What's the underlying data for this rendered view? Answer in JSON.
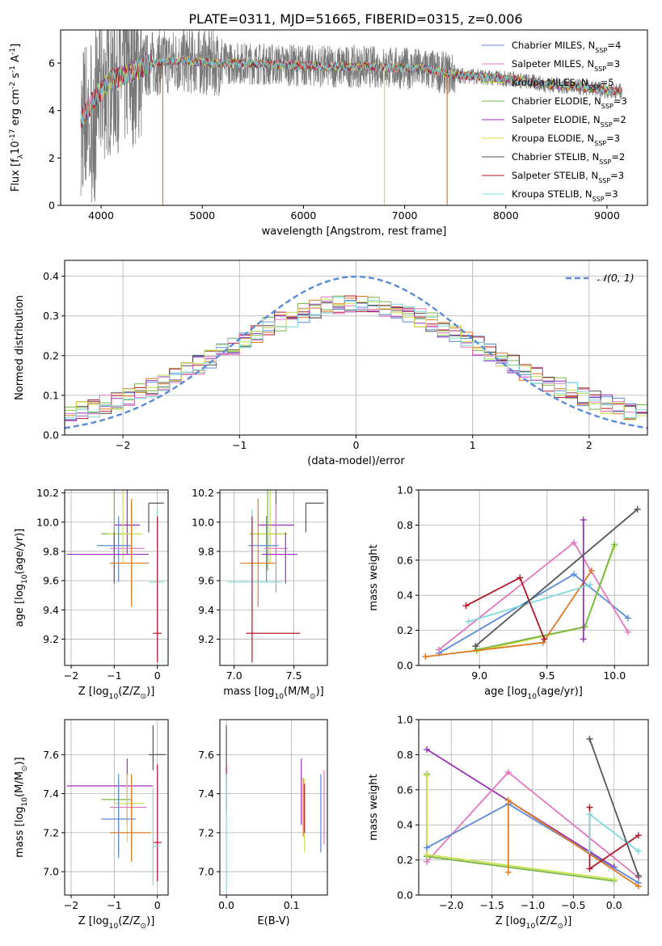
{
  "figure": {
    "title": "PLATE=0311, MJD=51665, FIBERID=0315, z=0.006"
  },
  "colors": [
    "#5b8bd8",
    "#e07b22",
    "#7ab648",
    "#b5172a",
    "#9b30b8",
    "#8c564b",
    "#e377c2",
    "#555555",
    "#c8e04a",
    "#80d8dc"
  ],
  "chart_data": [
    {
      "id": "spectrum",
      "type": "line",
      "xlabel": "wavelength [Angstrom, rest frame]",
      "ylabel": "Flux [f$_\\lambda$10$^{-17}$ erg cm$^{-2}$ s$^{-1}$ A$^{-1}$]",
      "xlim": [
        3600,
        9400
      ],
      "ylim": [
        0,
        7.4
      ],
      "xticks": [
        4000,
        5000,
        6000,
        7000,
        8000,
        9000
      ],
      "yticks": [
        0,
        2,
        4,
        6
      ],
      "legend_position": "top-right",
      "continuum_x": [
        3800,
        3950,
        4100,
        4300,
        4500,
        4800,
        5100,
        5400,
        5700,
        6000,
        6300,
        6600,
        6900,
        7200,
        7500,
        7800,
        8100,
        8400,
        8700,
        9000,
        9150
      ],
      "continuum_y": [
        3.6,
        4.6,
        5.3,
        5.6,
        6.0,
        6.1,
        6.0,
        6.0,
        5.95,
        5.9,
        5.85,
        5.85,
        5.8,
        5.75,
        5.5,
        5.4,
        5.3,
        5.1,
        5.0,
        4.85,
        4.8
      ],
      "models": [
        {
          "name": "Chabrier MILES, N$_{SSP}$=4",
          "color": "#5b8bd8"
        },
        {
          "name": "Salpeter MILES, N$_{SSP}$=3",
          "color": "#e377c2"
        },
        {
          "name": "Kroupa MILES, N$_{SSP}$=5",
          "color": "#c8e04a"
        },
        {
          "name": "Chabrier ELODIE, N$_{SSP}$=3",
          "color": "#7ab648"
        },
        {
          "name": "Salpeter ELODIE, N$_{SSP}$=2",
          "color": "#9b30b8"
        },
        {
          "name": "Kroupa ELODIE, N$_{SSP}$=3",
          "color": "#e0d84a"
        },
        {
          "name": "Chabrier STELIB, N$_{SSP}$=2",
          "color": "#555555"
        },
        {
          "name": "Salpeter STELIB, N$_{SSP}$=3",
          "color": "#b5172a"
        },
        {
          "name": "Kroupa STELIB, N$_{SSP}$=3",
          "color": "#80d8dc"
        }
      ],
      "legend_labels": [
        {
          "pre": "Chabrier MILES, N",
          "sub": "SSP",
          "post": "=4"
        },
        {
          "pre": "Salpeter MILES, N",
          "sub": "SSP",
          "post": "=3"
        },
        {
          "pre": "Kroupa MILES, N",
          "sub": "SSP",
          "post": "=5"
        },
        {
          "pre": "Chabrier ELODIE, N",
          "sub": "SSP",
          "post": "=3"
        },
        {
          "pre": "Salpeter ELODIE, N",
          "sub": "SSP",
          "post": "=2"
        },
        {
          "pre": "Kroupa ELODIE, N",
          "sub": "SSP",
          "post": "=3"
        },
        {
          "pre": "Chabrier STELIB, N",
          "sub": "SSP",
          "post": "=2"
        },
        {
          "pre": "Salpeter STELIB, N",
          "sub": "SSP",
          "post": "=3"
        },
        {
          "pre": "Kroupa STELIB, N",
          "sub": "SSP",
          "post": "=3"
        }
      ],
      "dropouts": [
        {
          "x": 4610,
          "color": "#e07b22"
        },
        {
          "x": 6800,
          "color": "#c8e04a"
        },
        {
          "x": 7420,
          "color": "#e07b22"
        }
      ]
    },
    {
      "id": "residuals",
      "type": "histogram",
      "xlabel": "(data-model)/error",
      "ylabel": "Normed distribution",
      "xlim": [
        -2.5,
        2.5
      ],
      "ylim": [
        0,
        0.44
      ],
      "xticks": [
        -2,
        -1,
        0,
        1,
        2
      ],
      "yticks": [
        0.0,
        0.1,
        0.2,
        0.3,
        0.4
      ],
      "grid": true,
      "legend": "𝒩(0, 1)",
      "legend_position": "top-right",
      "gaussian": {
        "mu": 0,
        "sigma": 1,
        "peak": 0.399,
        "color": "#5b8bd8",
        "style": "dashed"
      },
      "bin_width": 0.1,
      "bin_start": -2.5
    },
    {
      "id": "age_vs_Z",
      "type": "errorbar",
      "xlabel": "Z [log$_{10}$(Z/Z$_\\odot$)]",
      "ylabel": "age  [log$_{10}$(age/yr)]",
      "xlim": [
        -2.15,
        0.25
      ],
      "ylim": [
        9.02,
        10.22
      ],
      "xticks": [
        -2,
        -1,
        0
      ],
      "yticks": [
        9.2,
        9.4,
        9.6,
        9.8,
        10.0,
        10.2
      ],
      "grid": true,
      "points": [
        {
          "x": -0.2,
          "y": 10.13,
          "xerr": [
            0.0,
            0.35
          ],
          "yerr": [
            0.2,
            0.0
          ],
          "color": "#555555"
        },
        {
          "x": -0.7,
          "y": 9.98,
          "xerr": [
            0.3,
            0.3
          ],
          "yerr": [
            0.2,
            0.4
          ],
          "color": "#9b30b8"
        },
        {
          "x": -1.0,
          "y": 9.92,
          "xerr": [
            0.3,
            0.4
          ],
          "yerr": [
            0.25,
            0.3
          ],
          "color": "#7ab648"
        },
        {
          "x": -0.8,
          "y": 9.92,
          "xerr": [
            0.35,
            0.45
          ],
          "yerr": [
            0.2,
            0.3
          ],
          "color": "#c8e04a"
        },
        {
          "x": -0.9,
          "y": 9.84,
          "xerr": [
            0.5,
            0.3
          ],
          "yerr": [
            0.25,
            0.2
          ],
          "color": "#5b8bd8"
        },
        {
          "x": -0.6,
          "y": 9.82,
          "xerr": [
            0.5,
            0.3
          ],
          "yerr": [
            0.3,
            0.3
          ],
          "color": "#e377c2"
        },
        {
          "x": -1.0,
          "y": 9.78,
          "xerr": [
            1.1,
            0.8
          ],
          "yerr": [
            0.2,
            0.15
          ],
          "color": "#9b30b8"
        },
        {
          "x": -0.6,
          "y": 9.72,
          "xerr": [
            0.5,
            0.4
          ],
          "yerr": [
            0.3,
            0.44
          ],
          "color": "#e07b22"
        },
        {
          "x": 0.0,
          "y": 9.59,
          "xerr": [
            0.2,
            0.15
          ],
          "yerr": [
            0.5,
            0.5
          ],
          "color": "#80d8dc"
        },
        {
          "x": 0.0,
          "y": 9.24,
          "xerr": [
            0.1,
            0.1
          ],
          "yerr": [
            0.2,
            0.8
          ],
          "color": "#b5172a"
        }
      ]
    },
    {
      "id": "age_vs_mass",
      "type": "errorbar",
      "xlabel": "mass [log$_{10}$(M/M$_\\odot$)]",
      "ylabel": "",
      "xlim": [
        6.88,
        7.78
      ],
      "ylim": [
        9.02,
        10.22
      ],
      "xticks": [
        7.0,
        7.5
      ],
      "yticks": [
        9.2,
        9.4,
        9.6,
        9.8,
        10.0,
        10.2
      ],
      "grid": true,
      "points": [
        {
          "x": 7.6,
          "y": 10.13,
          "xerr": [
            0.0,
            0.15
          ],
          "yerr": [
            0.2,
            0.0
          ],
          "color": "#555555"
        },
        {
          "x": 7.35,
          "y": 9.98,
          "xerr": [
            0.15,
            0.15
          ],
          "yerr": [
            0.2,
            0.4
          ],
          "color": "#9b30b8"
        },
        {
          "x": 7.28,
          "y": 9.92,
          "xerr": [
            0.15,
            0.15
          ],
          "yerr": [
            0.25,
            0.3
          ],
          "color": "#7ab648"
        },
        {
          "x": 7.3,
          "y": 9.92,
          "xerr": [
            0.15,
            0.15
          ],
          "yerr": [
            0.2,
            0.3
          ],
          "color": "#c8e04a"
        },
        {
          "x": 7.27,
          "y": 9.84,
          "xerr": [
            0.15,
            0.1
          ],
          "yerr": [
            0.25,
            0.2
          ],
          "color": "#5b8bd8"
        },
        {
          "x": 7.35,
          "y": 9.82,
          "xerr": [
            0.1,
            0.1
          ],
          "yerr": [
            0.3,
            0.3
          ],
          "color": "#e377c2"
        },
        {
          "x": 7.43,
          "y": 9.78,
          "xerr": [
            0.2,
            0.1
          ],
          "yerr": [
            0.2,
            0.15
          ],
          "color": "#9b30b8"
        },
        {
          "x": 7.2,
          "y": 9.72,
          "xerr": [
            0.15,
            0.15
          ],
          "yerr": [
            0.3,
            0.44
          ],
          "color": "#e07b22"
        },
        {
          "x": 7.15,
          "y": 9.59,
          "xerr": [
            0.2,
            0.25
          ],
          "yerr": [
            0.5,
            0.5
          ],
          "color": "#80d8dc"
        },
        {
          "x": 7.15,
          "y": 9.24,
          "xerr": [
            0.05,
            0.4
          ],
          "yerr": [
            0.2,
            0.8
          ],
          "color": "#b5172a"
        }
      ]
    },
    {
      "id": "weight_vs_age",
      "type": "line",
      "xlabel": "age  [log$_{10}$(age/yr)]",
      "ylabel": "mass weight",
      "xlim": [
        8.55,
        10.25
      ],
      "ylim": [
        0,
        1.0
      ],
      "xticks": [
        9.0,
        9.5,
        10.0
      ],
      "yticks": [
        0.0,
        0.2,
        0.4,
        0.6,
        0.8,
        1.0
      ],
      "grid": true,
      "series": [
        {
          "color": "#5b8bd8",
          "x": [
            8.7,
            9.7,
            10.1
          ],
          "y": [
            0.07,
            0.52,
            0.27
          ]
        },
        {
          "color": "#e377c2",
          "x": [
            8.7,
            9.7,
            10.1
          ],
          "y": [
            0.09,
            0.7,
            0.19
          ]
        },
        {
          "color": "#c8e04a",
          "x": [
            8.98,
            9.78,
            10.0
          ],
          "y": [
            0.08,
            0.22,
            0.68
          ]
        },
        {
          "color": "#7ab648",
          "x": [
            8.98,
            9.78,
            10.0
          ],
          "y": [
            0.09,
            0.22,
            0.69
          ]
        },
        {
          "color": "#e07b22",
          "x": [
            8.6,
            9.47,
            9.83
          ],
          "y": [
            0.05,
            0.13,
            0.54
          ]
        },
        {
          "color": "#9b30b8",
          "x": [
            9.77,
            9.77
          ],
          "y": [
            0.15,
            0.83
          ]
        },
        {
          "color": "#80d8dc",
          "x": [
            8.92,
            9.82
          ],
          "y": [
            0.25,
            0.46
          ]
        },
        {
          "color": "#b5172a",
          "x": [
            8.9,
            9.3,
            9.48
          ],
          "y": [
            0.34,
            0.5,
            0.15
          ]
        },
        {
          "color": "#555555",
          "x": [
            8.97,
            10.17
          ],
          "y": [
            0.11,
            0.89
          ]
        }
      ]
    },
    {
      "id": "mass_vs_Z",
      "type": "errorbar",
      "xlabel": "Z [log$_{10}$(Z/Z$_\\odot$)]",
      "ylabel": "mass [log$_{10}$(M/M$_\\odot$)]",
      "xlim": [
        -2.15,
        0.25
      ],
      "ylim": [
        6.88,
        7.78
      ],
      "xticks": [
        -2,
        -1,
        0
      ],
      "yticks": [
        7.0,
        7.2,
        7.4,
        7.6
      ],
      "grid": true,
      "points": [
        {
          "x": -0.1,
          "y": 7.6,
          "xerr": [
            0.1,
            0.3
          ],
          "yerr": [
            0.08,
            0.15
          ],
          "color": "#555555"
        },
        {
          "x": -0.7,
          "y": 7.44,
          "xerr": [
            1.4,
            0.6
          ],
          "yerr": [
            0.2,
            0.14
          ],
          "color": "#9b30b8"
        },
        {
          "x": -0.9,
          "y": 7.37,
          "xerr": [
            0.4,
            0.3
          ],
          "yerr": [
            0.28,
            0.1
          ],
          "color": "#7ab648"
        },
        {
          "x": -0.7,
          "y": 7.35,
          "xerr": [
            0.3,
            0.4
          ],
          "yerr": [
            0.2,
            0.15
          ],
          "color": "#c8e04a"
        },
        {
          "x": -0.6,
          "y": 7.33,
          "xerr": [
            0.5,
            0.35
          ],
          "yerr": [
            0.2,
            0.1
          ],
          "color": "#e377c2"
        },
        {
          "x": -0.9,
          "y": 7.27,
          "xerr": [
            0.4,
            0.4
          ],
          "yerr": [
            0.2,
            0.23
          ],
          "color": "#5b8bd8"
        },
        {
          "x": -0.6,
          "y": 7.2,
          "xerr": [
            0.5,
            0.45
          ],
          "yerr": [
            0.15,
            0.3
          ],
          "color": "#e07b22"
        },
        {
          "x": 0.0,
          "y": 7.15,
          "xerr": [
            0.1,
            0.1
          ],
          "yerr": [
            0.2,
            0.4
          ],
          "color": "#b5172a"
        },
        {
          "x": -0.1,
          "y": 7.13,
          "xerr": [
            0.0,
            0.15
          ],
          "yerr": [
            0.2,
            0.3
          ],
          "color": "#80d8dc"
        }
      ]
    },
    {
      "id": "mass_vs_ebv",
      "type": "errorbar",
      "xlabel": "E(B-V)",
      "ylabel": "",
      "xlim": [
        -0.01,
        0.155
      ],
      "ylim": [
        6.88,
        7.78
      ],
      "xticks": [
        0.0,
        0.1
      ],
      "yticks": [
        7.0,
        7.2,
        7.4,
        7.6
      ],
      "grid": true,
      "points": [
        {
          "x": 0.0,
          "y": 7.6,
          "yerr": [
            0.08,
            0.15
          ],
          "color": "#555555"
        },
        {
          "x": 0.0,
          "y": 7.44,
          "yerr": [
            0.14,
            0.1
          ],
          "color": "#b5172a"
        },
        {
          "x": 0.0,
          "y": 7.2,
          "yerr": [
            0.3,
            0.3
          ],
          "color": "#80d8dc"
        },
        {
          "x": 0.115,
          "y": 7.44,
          "yerr": [
            0.2,
            0.14
          ],
          "color": "#9b30b8"
        },
        {
          "x": 0.118,
          "y": 7.33,
          "yerr": [
            0.15,
            0.15
          ],
          "color": "#e07b22"
        },
        {
          "x": 0.12,
          "y": 7.3,
          "yerr": [
            0.2,
            0.18
          ],
          "color": "#c8e04a"
        },
        {
          "x": 0.12,
          "y": 7.35,
          "yerr": [
            0.15,
            0.1
          ],
          "color": "#b5172a"
        },
        {
          "x": 0.145,
          "y": 7.3,
          "yerr": [
            0.2,
            0.2
          ],
          "color": "#5b8bd8"
        },
        {
          "x": 0.15,
          "y": 7.32,
          "yerr": [
            0.18,
            0.2
          ],
          "color": "#e377c2"
        }
      ]
    },
    {
      "id": "weight_vs_Z",
      "type": "line",
      "xlabel": "Z [log$_{10}$(Z/Z$_\\odot$)]",
      "ylabel": "mass weight",
      "xlim": [
        -2.4,
        0.42
      ],
      "ylim": [
        0,
        1.0
      ],
      "xticks": [
        -2.0,
        -1.5,
        -1.0,
        -0.5,
        0.0
      ],
      "yticks": [
        0.0,
        0.2,
        0.4,
        0.6,
        0.8,
        1.0
      ],
      "grid": true,
      "series": [
        {
          "color": "#9b30b8",
          "x": [
            -2.3,
            0.0
          ],
          "y": [
            0.83,
            0.16
          ]
        },
        {
          "color": "#e377c2",
          "x": [
            -2.3,
            -1.3,
            0.3
          ],
          "y": [
            0.19,
            0.7,
            0.1
          ]
        },
        {
          "color": "#7ab648",
          "x": [
            -2.3,
            -2.3,
            0.0
          ],
          "y": [
            0.69,
            0.22,
            0.08
          ]
        },
        {
          "color": "#c8e04a",
          "x": [
            -2.3,
            -2.3,
            0.0
          ],
          "y": [
            0.68,
            0.23,
            0.09
          ]
        },
        {
          "color": "#5b8bd8",
          "x": [
            -2.3,
            -1.3,
            0.3
          ],
          "y": [
            0.27,
            0.52,
            0.07
          ]
        },
        {
          "color": "#e07b22",
          "x": [
            -1.3,
            -1.3,
            0.3
          ],
          "y": [
            0.13,
            0.54,
            0.05
          ]
        },
        {
          "color": "#b5172a",
          "x": [
            -0.3,
            -0.3,
            0.3
          ],
          "y": [
            0.5,
            0.15,
            0.34
          ]
        },
        {
          "color": "#80d8dc",
          "x": [
            -0.3,
            -0.3,
            0.3
          ],
          "y": [
            0.25,
            0.46,
            0.25
          ]
        },
        {
          "color": "#555555",
          "x": [
            -0.3,
            0.3
          ],
          "y": [
            0.89,
            0.11
          ]
        }
      ]
    }
  ]
}
